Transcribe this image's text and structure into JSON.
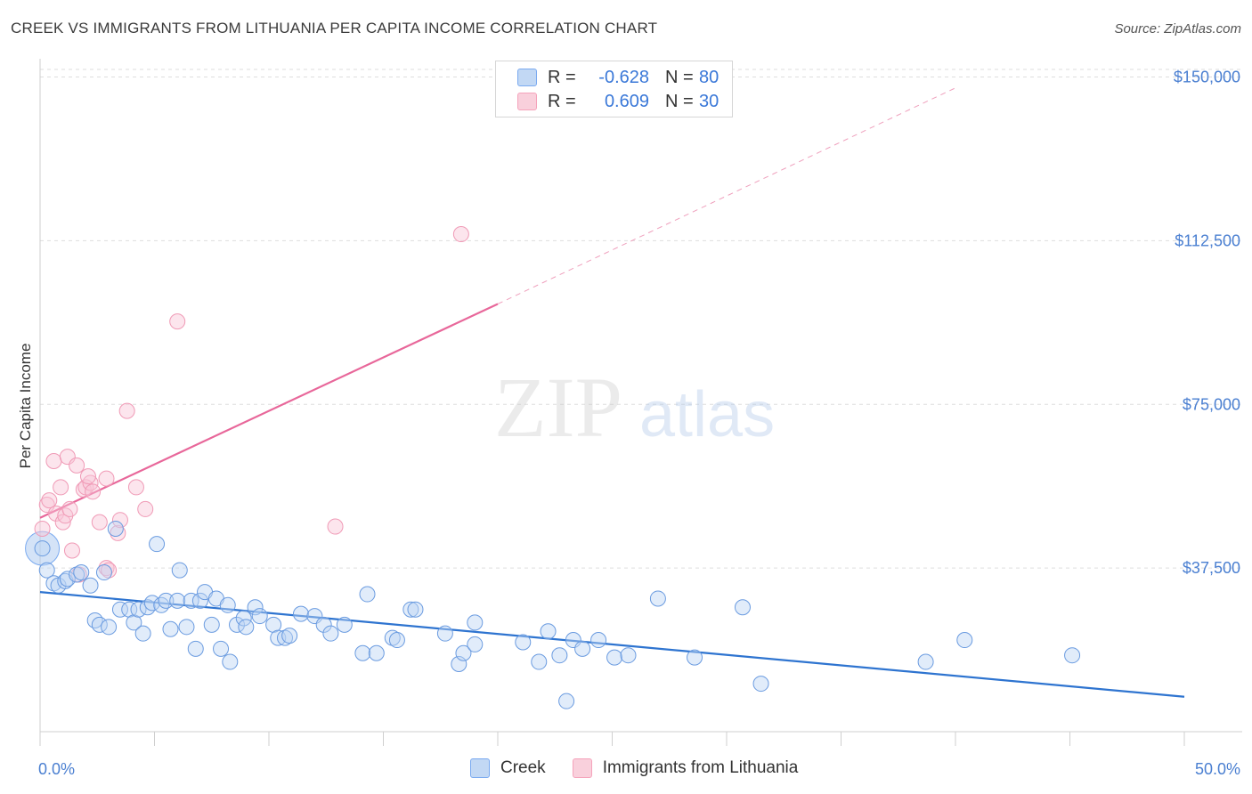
{
  "header": {
    "title": "CREEK VS IMMIGRANTS FROM LITHUANIA PER CAPITA INCOME CORRELATION CHART",
    "source": "Source: ZipAtlas.com"
  },
  "watermark": {
    "zip": "ZIP",
    "atlas": "atlas"
  },
  "legend": {
    "rows": [
      {
        "r_label": "R =",
        "r_value": "-0.628",
        "n_label": "N =",
        "n_value": "80",
        "color": "#a9c8f0"
      },
      {
        "r_label": "R =",
        "r_value": "0.609",
        "n_label": "N =",
        "n_value": "30",
        "color": "#f5b7c9"
      }
    ]
  },
  "bottom_legend": [
    "Creek",
    "Immigrants from Lithuania"
  ],
  "chart_data": {
    "type": "scatter",
    "title": "CREEK VS IMMIGRANTS FROM LITHUANIA PER CAPITA INCOME CORRELATION CHART",
    "xlabel": "",
    "ylabel": "Per Capita Income",
    "xlim": [
      0,
      50
    ],
    "ylim": [
      0,
      155000
    ],
    "x_tick_labels": [
      "0.0%",
      "50.0%"
    ],
    "y_ticks": [
      37500,
      75000,
      112500,
      150000
    ],
    "y_tick_labels": [
      "$37,500",
      "$75,000",
      "$112,500",
      "$150,000"
    ],
    "grid": true,
    "legend_position": "top-center",
    "series": [
      {
        "name": "Creek",
        "color": "#7aaaf0",
        "line_color": "#2e74d0",
        "trend": {
          "x": [
            0,
            50
          ],
          "y": [
            32000,
            8000
          ]
        },
        "points": [
          [
            0.1,
            42000
          ],
          [
            0.3,
            37000
          ],
          [
            0.6,
            34000
          ],
          [
            0.8,
            33500
          ],
          [
            1.1,
            34500
          ],
          [
            1.2,
            35000
          ],
          [
            1.6,
            36000
          ],
          [
            1.8,
            36500
          ],
          [
            2.2,
            33500
          ],
          [
            2.8,
            36500
          ],
          [
            3.3,
            46500
          ],
          [
            5.1,
            43000
          ],
          [
            6.1,
            37000
          ],
          [
            2.4,
            25500
          ],
          [
            2.6,
            24500
          ],
          [
            3.0,
            24000
          ],
          [
            3.5,
            28000
          ],
          [
            3.9,
            28000
          ],
          [
            4.1,
            25000
          ],
          [
            4.3,
            28000
          ],
          [
            4.5,
            22500
          ],
          [
            4.7,
            28500
          ],
          [
            4.9,
            29500
          ],
          [
            5.3,
            29000
          ],
          [
            5.5,
            30000
          ],
          [
            5.7,
            23500
          ],
          [
            6.0,
            30000
          ],
          [
            6.4,
            24000
          ],
          [
            6.6,
            30000
          ],
          [
            6.8,
            19000
          ],
          [
            7.0,
            30000
          ],
          [
            7.2,
            32000
          ],
          [
            7.5,
            24500
          ],
          [
            7.7,
            30500
          ],
          [
            7.9,
            19000
          ],
          [
            8.2,
            29000
          ],
          [
            8.3,
            16000
          ],
          [
            8.6,
            24500
          ],
          [
            8.9,
            26000
          ],
          [
            9.0,
            24000
          ],
          [
            9.4,
            28500
          ],
          [
            9.6,
            26500
          ],
          [
            10.2,
            24500
          ],
          [
            10.4,
            21500
          ],
          [
            10.7,
            21500
          ],
          [
            10.9,
            22000
          ],
          [
            11.4,
            27000
          ],
          [
            12.0,
            26500
          ],
          [
            12.4,
            24500
          ],
          [
            12.7,
            22500
          ],
          [
            13.3,
            24500
          ],
          [
            14.1,
            18000
          ],
          [
            14.3,
            31500
          ],
          [
            14.7,
            18000
          ],
          [
            15.4,
            21500
          ],
          [
            15.6,
            21000
          ],
          [
            16.2,
            28000
          ],
          [
            16.4,
            28000
          ],
          [
            17.7,
            22500
          ],
          [
            18.3,
            15500
          ],
          [
            18.5,
            18000
          ],
          [
            19.0,
            20000
          ],
          [
            19.0,
            25000
          ],
          [
            21.1,
            20500
          ],
          [
            22.2,
            23000
          ],
          [
            22.7,
            17500
          ],
          [
            23.0,
            7000
          ],
          [
            23.3,
            21000
          ],
          [
            23.7,
            19000
          ],
          [
            24.4,
            21000
          ],
          [
            25.1,
            17000
          ],
          [
            25.7,
            17500
          ],
          [
            27.0,
            30500
          ],
          [
            28.6,
            17000
          ],
          [
            30.7,
            28500
          ],
          [
            31.5,
            11000
          ],
          [
            38.7,
            16000
          ],
          [
            40.4,
            21000
          ],
          [
            45.1,
            17500
          ],
          [
            21.8,
            16000
          ]
        ],
        "big_point": [
          0.1,
          42000
        ]
      },
      {
        "name": "Immigrants from Lithuania",
        "color": "#f5a3bb",
        "line_color": "#e8679a",
        "trend": {
          "x": [
            0,
            20
          ],
          "y": [
            49000,
            98000
          ]
        },
        "trend_extended": {
          "x": [
            20,
            40
          ],
          "y": [
            98000,
            147500
          ]
        },
        "points": [
          [
            0.1,
            46500
          ],
          [
            0.3,
            52000
          ],
          [
            0.4,
            53000
          ],
          [
            0.6,
            62000
          ],
          [
            0.7,
            50000
          ],
          [
            0.9,
            56000
          ],
          [
            1.0,
            48000
          ],
          [
            1.1,
            49500
          ],
          [
            1.2,
            63000
          ],
          [
            1.3,
            51000
          ],
          [
            1.4,
            41500
          ],
          [
            1.6,
            61000
          ],
          [
            1.7,
            36000
          ],
          [
            1.9,
            55500
          ],
          [
            2.0,
            56000
          ],
          [
            2.2,
            57000
          ],
          [
            2.3,
            55000
          ],
          [
            2.6,
            48000
          ],
          [
            2.9,
            37500
          ],
          [
            3.0,
            37000
          ],
          [
            2.1,
            58500
          ],
          [
            2.9,
            58000
          ],
          [
            3.4,
            45500
          ],
          [
            3.5,
            48500
          ],
          [
            3.8,
            73500
          ],
          [
            4.2,
            56000
          ],
          [
            4.6,
            51000
          ],
          [
            6.0,
            94000
          ],
          [
            12.9,
            47000
          ],
          [
            18.4,
            114000
          ]
        ]
      }
    ]
  }
}
